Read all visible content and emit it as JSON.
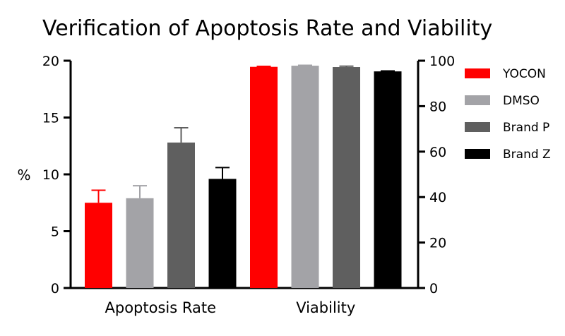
{
  "chart_data": {
    "type": "bar",
    "title": "Verification of Apoptosis Rate and Viability",
    "ylabel": "%",
    "categories": [
      "Apoptosis Rate",
      "Viability"
    ],
    "y_left": {
      "ylim": [
        0,
        20
      ],
      "ticks": [
        "0",
        "5",
        "10",
        "15",
        "20"
      ]
    },
    "y_right": {
      "ylim": [
        0,
        100
      ],
      "ticks": [
        "0",
        "20",
        "40",
        "60",
        "80",
        "100"
      ]
    },
    "legend_position": "right",
    "grid": false,
    "series": [
      {
        "name": "YOCON",
        "color": "#ff0000",
        "values": [
          7.5,
          97.3
        ],
        "errors": [
          1.1,
          0.2
        ]
      },
      {
        "name": "DMSO",
        "color": "#a3a3a7",
        "values": [
          7.9,
          97.8
        ],
        "errors": [
          1.1,
          0.2
        ]
      },
      {
        "name": "Brand P",
        "color": "#5f5f5f",
        "values": [
          12.8,
          97.2
        ],
        "errors": [
          1.3,
          0.4
        ]
      },
      {
        "name": "Brand Z",
        "color": "#000000",
        "values": [
          9.6,
          95.3
        ],
        "errors": [
          1.0,
          0.2
        ]
      }
    ]
  }
}
